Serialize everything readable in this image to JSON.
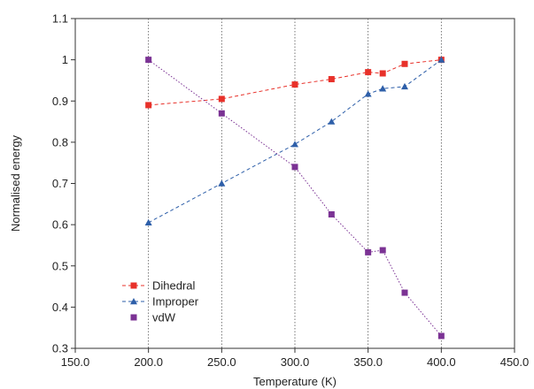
{
  "chart_data": {
    "type": "line",
    "xlabel": "Temperature (K)",
    "ylabel": "Normalised energy",
    "xlim": [
      150,
      450
    ],
    "ylim": [
      0.3,
      1.1
    ],
    "x_ticks": [
      "150.0",
      "200.0",
      "250.0",
      "300.0",
      "350.0",
      "400.0",
      "450.0"
    ],
    "y_ticks": [
      "0.3",
      "0.4",
      "0.5",
      "0.6",
      "0.7",
      "0.8",
      "0.9",
      "1",
      "1.1"
    ],
    "x_tick_values": [
      150,
      200,
      250,
      300,
      350,
      400,
      450
    ],
    "y_tick_values": [
      0.3,
      0.4,
      0.5,
      0.6,
      0.7,
      0.8,
      0.9,
      1.0,
      1.1
    ],
    "vertical_gridlines": [
      200,
      250,
      300,
      350,
      400
    ],
    "legend_position": "bottom-left",
    "series": [
      {
        "name": "Dihedral",
        "color": "#e8312a",
        "marker": "square",
        "line_style": "dashed",
        "x": [
          200,
          250,
          300,
          325,
          350,
          360,
          375,
          400
        ],
        "y": [
          0.89,
          0.905,
          0.94,
          0.953,
          0.97,
          0.967,
          0.99,
          1.0
        ]
      },
      {
        "name": "Improper",
        "color": "#2e5fa9",
        "marker": "triangle",
        "line_style": "dashed",
        "x": [
          200,
          250,
          300,
          325,
          350,
          360,
          375,
          400
        ],
        "y": [
          0.605,
          0.7,
          0.795,
          0.85,
          0.917,
          0.93,
          0.935,
          1.0
        ]
      },
      {
        "name": "vdW",
        "color": "#7b3294",
        "marker": "square",
        "line_style": "dotted",
        "x": [
          200,
          250,
          300,
          325,
          350,
          360,
          375,
          400
        ],
        "y": [
          1.0,
          0.87,
          0.74,
          0.625,
          0.533,
          0.538,
          0.435,
          0.33
        ]
      }
    ]
  }
}
